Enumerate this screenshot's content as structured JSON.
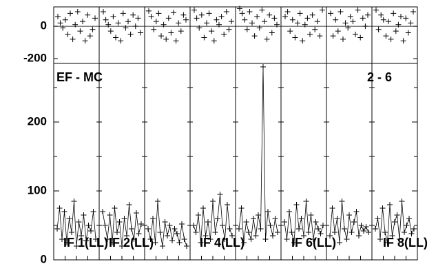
{
  "chart_data": {
    "type": "scatter",
    "panel_labels": {
      "left": "EF - MC",
      "right": "2 - 6"
    },
    "top_panel": {
      "yticks": [
        0,
        -200
      ],
      "ylim": [
        -230,
        120
      ],
      "series": [
        [
          60,
          20,
          -10,
          40,
          -50,
          80,
          -80,
          10,
          90,
          -30,
          30,
          -90,
          70,
          -60,
          -20,
          50
        ],
        [
          90,
          40,
          10,
          -30,
          60,
          -70,
          20,
          -90,
          80,
          -10,
          30,
          -50,
          70,
          0,
          50,
          -40
        ],
        [
          95,
          60,
          -20,
          30,
          80,
          -60,
          10,
          -80,
          50,
          -40,
          85,
          -90,
          20,
          -30,
          70,
          40
        ],
        [
          100,
          50,
          -10,
          70,
          -70,
          20,
          80,
          -30,
          -90,
          40,
          10,
          60,
          -50,
          90,
          -20,
          30
        ],
        [
          110,
          80,
          40,
          -20,
          90,
          20,
          -60,
          60,
          -10,
          100,
          30,
          -80,
          70,
          -40,
          50,
          10
        ],
        [
          60,
          90,
          -30,
          40,
          -70,
          20,
          80,
          -90,
          10,
          50,
          -50,
          70,
          -20,
          30,
          -60,
          100
        ],
        [
          80,
          -60,
          40,
          -30,
          90,
          -80,
          20,
          -10,
          60,
          30,
          -50,
          100,
          -70,
          50,
          0,
          70
        ],
        [
          100,
          -20,
          70,
          40,
          -60,
          30,
          -80,
          80,
          -30,
          10,
          60,
          -90,
          50,
          -40,
          20,
          90
        ]
      ]
    },
    "bottom_panel": {
      "yticks": [
        200,
        100,
        0
      ],
      "ylim": [
        0,
        285
      ],
      "if_labels": [
        "IF 1(LL)",
        "IF 2(LL)",
        "IF 4(LL)",
        "IF 6(LL)",
        "IF 8(LL)"
      ],
      "series": [
        [
          45,
          75,
          30,
          70,
          25,
          60,
          40,
          85,
          20,
          55,
          35,
          65,
          28,
          50,
          42,
          70,
          30
        ],
        [
          70,
          50,
          30,
          65,
          25,
          75,
          40,
          55,
          20,
          60,
          35,
          80,
          45,
          30,
          68,
          38,
          52
        ],
        [
          45,
          30,
          60,
          25,
          85,
          40,
          20,
          55,
          35,
          50,
          28,
          45,
          38,
          25,
          52,
          30,
          20
        ],
        [
          50,
          40,
          65,
          25,
          75,
          35,
          55,
          30,
          85,
          40,
          60,
          95,
          50,
          30,
          80,
          45,
          35
        ],
        [
          45,
          75,
          25,
          55,
          40,
          30,
          60,
          35,
          65,
          45,
          280,
          30,
          70,
          50,
          35,
          60,
          40
        ],
        [
          55,
          30,
          70,
          40,
          25,
          80,
          45,
          60,
          35,
          85,
          40,
          65,
          30,
          55,
          45,
          38,
          50
        ],
        [
          35,
          75,
          40,
          60,
          25,
          85,
          45,
          30,
          65,
          40,
          55,
          70,
          35,
          50,
          42,
          48,
          40
        ],
        [
          45,
          60,
          30,
          75,
          40,
          25,
          80,
          35,
          55,
          65,
          30,
          85,
          40,
          50,
          60,
          38,
          45
        ]
      ]
    }
  }
}
